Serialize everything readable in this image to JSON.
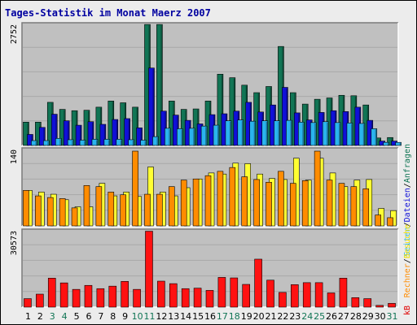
{
  "chart_data": [
    {
      "type": "bar",
      "title": "Tages-Statistik im Monat Maerz 2007",
      "top_label": "2752",
      "right_labels": [
        {
          "text": "Anfragen",
          "color": "#117555"
        },
        {
          "text": "/",
          "color": "#000000"
        },
        {
          "text": "Dateien",
          "color": "#1010d8"
        },
        {
          "text": "/",
          "color": "#000000"
        },
        {
          "text": "Seiten",
          "color": "#2ab4ee"
        }
      ],
      "categories": [
        "1",
        "2",
        "3",
        "4",
        "5",
        "6",
        "7",
        "8",
        "9",
        "10",
        "11",
        "12",
        "13",
        "14",
        "15",
        "16",
        "17",
        "18",
        "19",
        "20",
        "21",
        "22",
        "23",
        "24",
        "25",
        "26",
        "27",
        "28",
        "29",
        "30",
        "31"
      ],
      "category_colors": [
        "#000000",
        "#000000",
        "#117555",
        "#117555",
        "#000000",
        "#000000",
        "#000000",
        "#000000",
        "#000000",
        "#117555",
        "#117555",
        "#000000",
        "#000000",
        "#000000",
        "#000000",
        "#000000",
        "#117555",
        "#117555",
        "#000000",
        "#000000",
        "#000000",
        "#000000",
        "#000000",
        "#117555",
        "#117555",
        "#000000",
        "#000000",
        "#000000",
        "#000000",
        "#000000",
        "#117555"
      ],
      "ylim": [
        0,
        2752
      ],
      "series": [
        {
          "name": "Anfragen",
          "color": "#117555",
          "values": [
            530,
            530,
            980,
            820,
            790,
            800,
            870,
            1010,
            970,
            870,
            2750,
            2750,
            1010,
            820,
            830,
            1010,
            1620,
            1540,
            1370,
            1200,
            1340,
            2250,
            1200,
            940,
            1050,
            1080,
            1140,
            1130,
            920,
            170,
            180
          ]
        },
        {
          "name": "Dateien",
          "color": "#1010d8",
          "values": [
            250,
            410,
            710,
            560,
            460,
            540,
            480,
            590,
            610,
            400,
            1760,
            780,
            690,
            570,
            490,
            700,
            720,
            780,
            980,
            760,
            920,
            1320,
            740,
            580,
            750,
            790,
            770,
            870,
            570,
            100,
            100
          ]
        },
        {
          "name": "Seiten",
          "color": "#2ab4ee",
          "values": [
            110,
            110,
            160,
            130,
            120,
            140,
            140,
            140,
            130,
            120,
            200,
            390,
            380,
            390,
            440,
            460,
            560,
            580,
            550,
            560,
            560,
            570,
            530,
            520,
            540,
            520,
            510,
            500,
            380,
            70,
            70
          ]
        }
      ]
    },
    {
      "type": "bar",
      "top_label": "140",
      "right_labels": [
        {
          "text": "Besuche",
          "color": "#f0e000"
        },
        {
          "text": "/",
          "color": "#000000"
        },
        {
          "text": "Rechner",
          "color": "#ff8c00"
        }
      ],
      "ylim": [
        0,
        140
      ],
      "series": [
        {
          "name": "Besuche",
          "color": "#ffff33",
          "values": [
            65,
            62,
            58,
            48,
            35,
            35,
            78,
            55,
            62,
            54,
            108,
            62,
            55,
            70,
            86,
            97,
            95,
            115,
            114,
            95,
            87,
            85,
            124,
            84,
            124,
            97,
            72,
            84,
            85,
            32,
            28
          ]
        },
        {
          "name": "Rechner",
          "color": "#ff8c00",
          "values": [
            65,
            55,
            52,
            50,
            33,
            74,
            72,
            62,
            57,
            137,
            58,
            58,
            72,
            84,
            86,
            92,
            100,
            107,
            90,
            85,
            80,
            100,
            78,
            83,
            137,
            84,
            78,
            72,
            68,
            20,
            15
          ]
        }
      ]
    },
    {
      "type": "bar",
      "top_label": "30573",
      "right_labels": [
        {
          "text": "kB",
          "color": "#e00000"
        }
      ],
      "ylim": [
        0,
        30573
      ],
      "series": [
        {
          "name": "kB",
          "color": "#ff1111",
          "values": [
            3400,
            5200,
            11600,
            9700,
            7100,
            8700,
            7400,
            8400,
            10300,
            7100,
            30400,
            10400,
            9400,
            7400,
            7600,
            6700,
            11900,
            11700,
            9100,
            19200,
            10800,
            5900,
            9000,
            9800,
            9800,
            5700,
            11600,
            3800,
            3400,
            700,
            1500
          ]
        }
      ]
    }
  ]
}
